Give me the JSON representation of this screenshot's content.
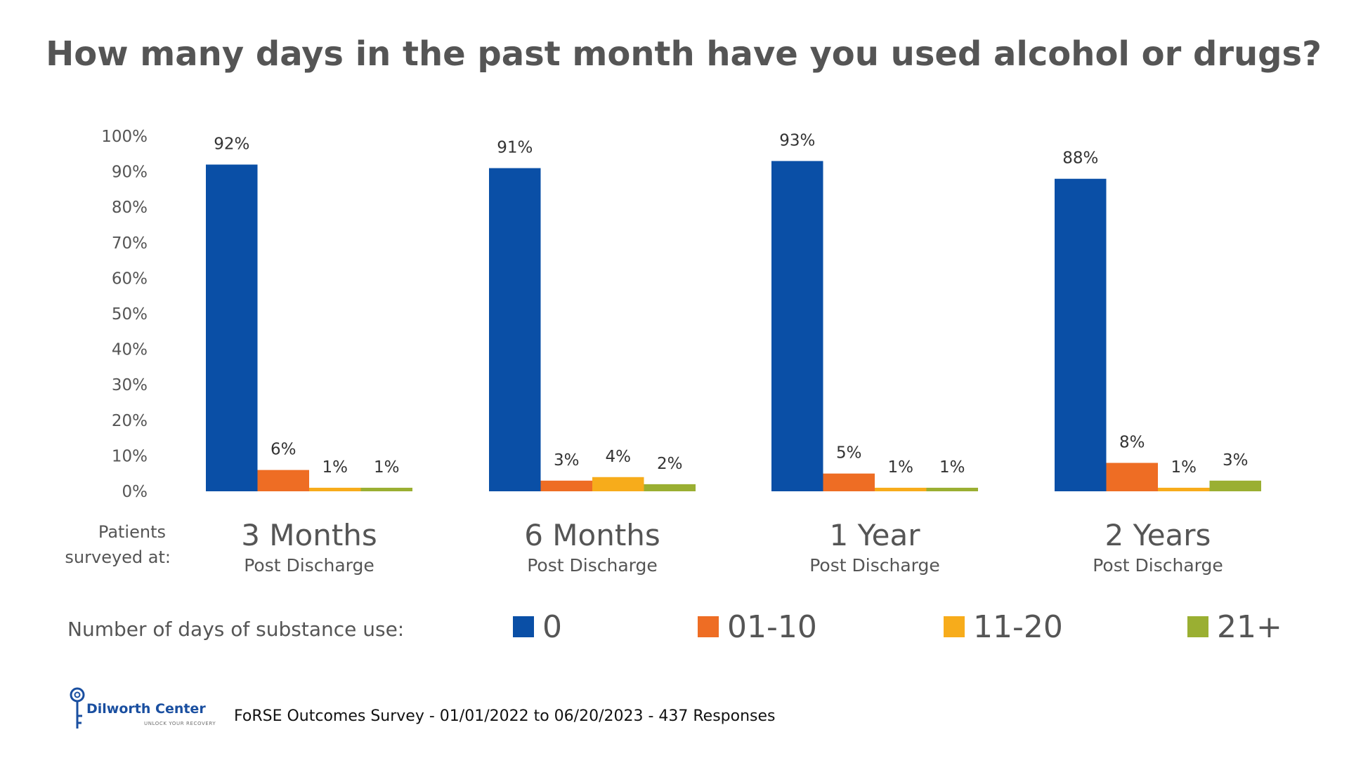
{
  "chart_data": {
    "type": "bar",
    "title": "How many days in the past month have you used alcohol or drugs?",
    "ylim": [
      0,
      100
    ],
    "y_ticks": [
      "0%",
      "10%",
      "20%",
      "30%",
      "40%",
      "50%",
      "60%",
      "70%",
      "80%",
      "90%",
      "100%"
    ],
    "categories": [
      {
        "title": "3 Months",
        "subtitle": "Post Discharge"
      },
      {
        "title": "6 Months",
        "subtitle": "Post Discharge"
      },
      {
        "title": "1 Year",
        "subtitle": "Post Discharge"
      },
      {
        "title": "2 Years",
        "subtitle": "Post Discharge"
      }
    ],
    "series": [
      {
        "name": "0",
        "color": "#0a4fa6",
        "values": [
          92,
          91,
          93,
          88
        ],
        "labels": [
          "92%",
          "91%",
          "93%",
          "88%"
        ]
      },
      {
        "name": "01-10",
        "color": "#ee6d24",
        "values": [
          6,
          3,
          5,
          8
        ],
        "labels": [
          "6%",
          "3%",
          "5%",
          "8%"
        ]
      },
      {
        "name": "11-20",
        "color": "#f7ac1b",
        "values": [
          1,
          4,
          1,
          1
        ],
        "labels": [
          "1%",
          "4%",
          "1%",
          "1%"
        ]
      },
      {
        "name": "21+",
        "color": "#9aaf32",
        "values": [
          1,
          2,
          1,
          3
        ],
        "labels": [
          "1%",
          "2%",
          "1%",
          "3%"
        ]
      }
    ],
    "x_caption_lines": [
      "Patients",
      "surveyed at:"
    ],
    "legend_caption": "Number of days of substance use:",
    "legend_position": "bottom",
    "grid": false
  },
  "footer": {
    "brand_name": "Dilworth Center",
    "brand_tagline": "UNLOCK YOUR RECOVERY",
    "source": "FoRSE Outcomes Survey - 01/01/2022 to 06/20/2023 - 437 Responses"
  },
  "colors": {
    "brand": "#1a4fa0",
    "text": "#555555",
    "baseline": "#cfcfcf"
  },
  "icons": {
    "logo": "key-icon"
  }
}
